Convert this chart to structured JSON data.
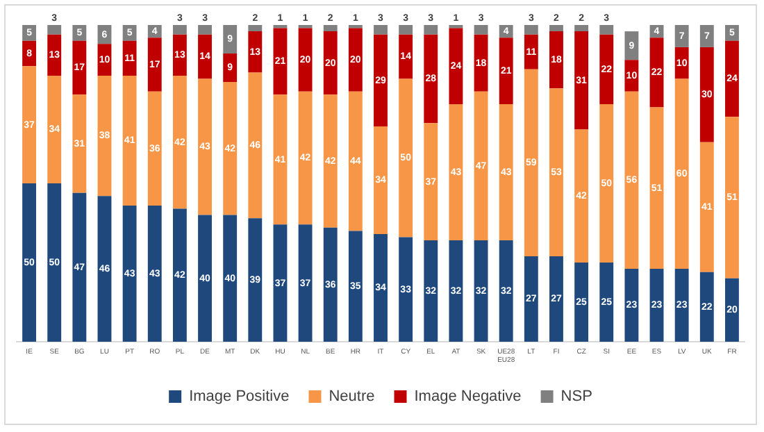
{
  "chart_data": {
    "type": "bar",
    "stacked": true,
    "data_labels": true,
    "legend": "bottom",
    "grid": false,
    "categories": [
      "IE",
      "SE",
      "BG",
      "LU",
      "PT",
      "RO",
      "PL",
      "DE",
      "MT",
      "DK",
      "HU",
      "NL",
      "BE",
      "HR",
      "IT",
      "CY",
      "EL",
      "AT",
      "SK",
      "UE28\nEU28",
      "LT",
      "FI",
      "CZ",
      "SI",
      "EE",
      "ES",
      "LV",
      "UK",
      "FR"
    ],
    "series": [
      {
        "name": "Image Positive",
        "color": "#1f497d",
        "values": [
          50,
          50,
          47,
          46,
          43,
          43,
          42,
          40,
          40,
          39,
          37,
          37,
          36,
          35,
          34,
          33,
          32,
          32,
          32,
          32,
          27,
          27,
          25,
          25,
          23,
          23,
          23,
          22,
          20
        ]
      },
      {
        "name": "Neutre",
        "color": "#f79646",
        "values": [
          37,
          34,
          31,
          38,
          41,
          36,
          42,
          43,
          42,
          46,
          41,
          42,
          42,
          44,
          34,
          50,
          37,
          43,
          47,
          43,
          59,
          53,
          42,
          50,
          56,
          51,
          60,
          41,
          51
        ]
      },
      {
        "name": "Image Negative",
        "color": "#c00000",
        "values": [
          8,
          13,
          17,
          10,
          11,
          17,
          13,
          14,
          9,
          13,
          21,
          20,
          20,
          20,
          29,
          14,
          28,
          24,
          18,
          21,
          11,
          18,
          31,
          22,
          10,
          22,
          10,
          30,
          24
        ]
      },
      {
        "name": "NSP",
        "color": "#808080",
        "values": [
          5,
          3,
          5,
          6,
          5,
          4,
          3,
          3,
          9,
          2,
          1,
          1,
          2,
          1,
          3,
          3,
          3,
          1,
          3,
          4,
          3,
          2,
          2,
          3,
          9,
          4,
          7,
          7,
          5
        ]
      }
    ]
  }
}
